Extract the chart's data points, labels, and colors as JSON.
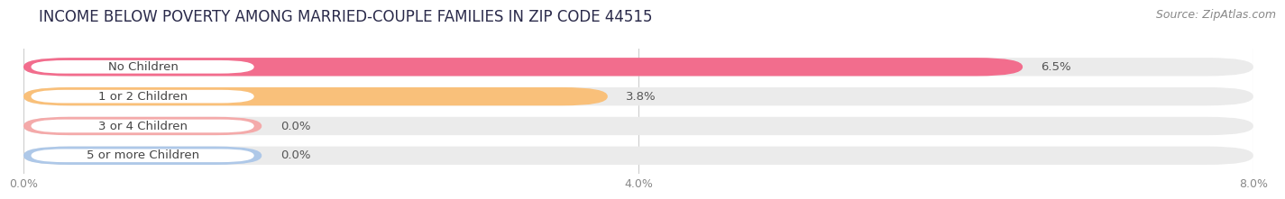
{
  "title": "INCOME BELOW POVERTY AMONG MARRIED-COUPLE FAMILIES IN ZIP CODE 44515",
  "source": "Source: ZipAtlas.com",
  "categories": [
    "No Children",
    "1 or 2 Children",
    "3 or 4 Children",
    "5 or more Children"
  ],
  "values": [
    6.5,
    3.8,
    0.0,
    0.0
  ],
  "bar_colors": [
    "#f26d8d",
    "#f9c07a",
    "#f4aaaa",
    "#aec8e8"
  ],
  "xlim": [
    0,
    8.0
  ],
  "xticks": [
    0.0,
    4.0,
    8.0
  ],
  "xtick_labels": [
    "0.0%",
    "4.0%",
    "8.0%"
  ],
  "bar_height": 0.62,
  "title_fontsize": 12,
  "source_fontsize": 9,
  "label_fontsize": 9.5,
  "value_fontsize": 9.5,
  "background_color": "#ffffff",
  "bar_bg_color": "#ebebeb",
  "label_bg_color": "#ffffff",
  "text_color": "#444444",
  "value_color": "#555555",
  "grid_color": "#cccccc",
  "tick_color": "#888888"
}
